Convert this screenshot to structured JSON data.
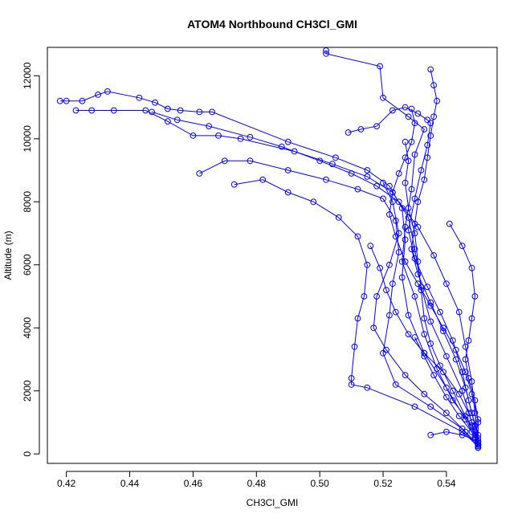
{
  "chart_data": {
    "type": "scatter",
    "title": "ATOM4 Northbound CH3Cl_GMI",
    "xlabel": "CH3Cl_GMI",
    "ylabel": "Altitude (m)",
    "xlim": [
      0.414,
      0.556
    ],
    "ylim": [
      -300,
      12900
    ],
    "x_ticks": [
      "0.42",
      "0.44",
      "0.46",
      "0.48",
      "0.50",
      "0.52",
      "0.54"
    ],
    "y_ticks": [
      "0",
      "2000",
      "4000",
      "6000",
      "8000",
      "10000",
      "12000"
    ],
    "series_color": "#0000ff",
    "marker": "open-circle",
    "connected": true,
    "series": [
      {
        "points": [
          [
            0.502,
            12800
          ],
          [
            0.502,
            12700
          ],
          [
            0.519,
            12300
          ],
          [
            0.52,
            11300
          ],
          [
            0.528,
            10700
          ],
          [
            0.533,
            10300
          ],
          [
            0.53,
            9500
          ],
          [
            0.529,
            8400
          ],
          [
            0.527,
            7200
          ],
          [
            0.526,
            6100
          ],
          [
            0.53,
            5000
          ],
          [
            0.533,
            3800
          ],
          [
            0.537,
            2700
          ],
          [
            0.542,
            1700
          ],
          [
            0.548,
            900
          ],
          [
            0.55,
            400
          ],
          [
            0.55,
            200
          ]
        ]
      },
      {
        "points": [
          [
            0.418,
            11200
          ],
          [
            0.42,
            11200
          ],
          [
            0.425,
            11200
          ],
          [
            0.43,
            11400
          ],
          [
            0.433,
            11500
          ],
          [
            0.443,
            11300
          ],
          [
            0.448,
            11150
          ],
          [
            0.452,
            10950
          ],
          [
            0.456,
            10900
          ],
          [
            0.462,
            10850
          ],
          [
            0.466,
            10850
          ],
          [
            0.49,
            9900
          ],
          [
            0.505,
            9400
          ],
          [
            0.515,
            9000
          ],
          [
            0.522,
            8500
          ],
          [
            0.526,
            7800
          ],
          [
            0.527,
            6800
          ],
          [
            0.526,
            5600
          ],
          [
            0.528,
            4400
          ],
          [
            0.533,
            3200
          ],
          [
            0.54,
            2100
          ],
          [
            0.546,
            1100
          ],
          [
            0.549,
            500
          ],
          [
            0.55,
            300
          ]
        ]
      },
      {
        "points": [
          [
            0.423,
            10900
          ],
          [
            0.428,
            10900
          ],
          [
            0.435,
            10900
          ],
          [
            0.445,
            10900
          ],
          [
            0.452,
            10550
          ],
          [
            0.46,
            10100
          ],
          [
            0.468,
            10100
          ],
          [
            0.475,
            10000
          ],
          [
            0.492,
            9600
          ],
          [
            0.504,
            9200
          ],
          [
            0.515,
            8800
          ],
          [
            0.523,
            8300
          ],
          [
            0.528,
            7500
          ],
          [
            0.53,
            6500
          ],
          [
            0.532,
            5300
          ],
          [
            0.535,
            4200
          ],
          [
            0.54,
            3100
          ],
          [
            0.545,
            2000
          ],
          [
            0.548,
            1000
          ],
          [
            0.55,
            300
          ]
        ]
      },
      {
        "points": [
          [
            0.462,
            8900
          ],
          [
            0.47,
            9300
          ],
          [
            0.478,
            9300
          ],
          [
            0.49,
            9000
          ],
          [
            0.502,
            8700
          ],
          [
            0.512,
            8400
          ],
          [
            0.52,
            8100
          ],
          [
            0.524,
            7400
          ],
          [
            0.525,
            6400
          ],
          [
            0.523,
            5400
          ],
          [
            0.522,
            4400
          ],
          [
            0.52,
            3200
          ],
          [
            0.524,
            2200
          ],
          [
            0.535,
            1500
          ],
          [
            0.545,
            800
          ],
          [
            0.55,
            200
          ]
        ]
      },
      {
        "points": [
          [
            0.473,
            8550
          ],
          [
            0.482,
            8700
          ],
          [
            0.49,
            8300
          ],
          [
            0.498,
            8000
          ],
          [
            0.506,
            7500
          ],
          [
            0.512,
            6900
          ],
          [
            0.515,
            6000
          ],
          [
            0.514,
            5000
          ],
          [
            0.512,
            4300
          ],
          [
            0.511,
            3400
          ],
          [
            0.51,
            2400
          ],
          [
            0.51,
            2200
          ],
          [
            0.515,
            2100
          ],
          [
            0.53,
            1500
          ],
          [
            0.545,
            700
          ],
          [
            0.55,
            250
          ]
        ]
      },
      {
        "points": [
          [
            0.509,
            10200
          ],
          [
            0.513,
            10300
          ],
          [
            0.518,
            10400
          ],
          [
            0.523,
            10900
          ],
          [
            0.527,
            11000
          ],
          [
            0.531,
            10800
          ],
          [
            0.534,
            10600
          ],
          [
            0.535,
            10500
          ],
          [
            0.534,
            9800
          ],
          [
            0.532,
            9000
          ],
          [
            0.53,
            8100
          ],
          [
            0.528,
            7100
          ],
          [
            0.53,
            6200
          ],
          [
            0.534,
            5300
          ],
          [
            0.538,
            4500
          ],
          [
            0.542,
            3600
          ],
          [
            0.545,
            2600
          ],
          [
            0.547,
            1700
          ],
          [
            0.549,
            900
          ],
          [
            0.55,
            350
          ]
        ]
      },
      {
        "points": [
          [
            0.535,
            12200
          ],
          [
            0.536,
            11700
          ],
          [
            0.537,
            11200
          ],
          [
            0.536,
            10700
          ],
          [
            0.535,
            10100
          ],
          [
            0.534,
            9400
          ],
          [
            0.533,
            8700
          ],
          [
            0.531,
            8000
          ],
          [
            0.53,
            7300
          ],
          [
            0.529,
            6500
          ],
          [
            0.531,
            5700
          ],
          [
            0.535,
            4800
          ],
          [
            0.539,
            3900
          ],
          [
            0.543,
            3000
          ],
          [
            0.546,
            2100
          ],
          [
            0.548,
            1300
          ],
          [
            0.55,
            600
          ],
          [
            0.55,
            200
          ]
        ]
      },
      {
        "points": [
          [
            0.447,
            10850
          ],
          [
            0.455,
            10600
          ],
          [
            0.465,
            10400
          ],
          [
            0.478,
            10050
          ],
          [
            0.488,
            9750
          ],
          [
            0.5,
            9300
          ],
          [
            0.51,
            8900
          ],
          [
            0.518,
            8500
          ],
          [
            0.525,
            8000
          ],
          [
            0.531,
            7200
          ],
          [
            0.536,
            6300
          ],
          [
            0.54,
            5400
          ],
          [
            0.544,
            4500
          ],
          [
            0.546,
            3400
          ],
          [
            0.548,
            2300
          ],
          [
            0.549,
            1300
          ],
          [
            0.55,
            400
          ]
        ]
      },
      {
        "points": [
          [
            0.52,
            8600
          ],
          [
            0.523,
            8000
          ],
          [
            0.525,
            7000
          ],
          [
            0.522,
            6000
          ],
          [
            0.518,
            5000
          ],
          [
            0.517,
            4000
          ],
          [
            0.521,
            3300
          ],
          [
            0.527,
            2500
          ],
          [
            0.533,
            1900
          ],
          [
            0.54,
            1300
          ],
          [
            0.546,
            700
          ],
          [
            0.55,
            300
          ]
        ]
      },
      {
        "points": [
          [
            0.527,
            9900
          ],
          [
            0.528,
            9300
          ],
          [
            0.527,
            8600
          ],
          [
            0.528,
            7800
          ],
          [
            0.53,
            7000
          ],
          [
            0.531,
            6100
          ],
          [
            0.532,
            5200
          ],
          [
            0.533,
            4300
          ],
          [
            0.535,
            3500
          ],
          [
            0.538,
            2800
          ],
          [
            0.542,
            2000
          ],
          [
            0.546,
            1200
          ],
          [
            0.549,
            600
          ],
          [
            0.55,
            250
          ]
        ]
      },
      {
        "points": [
          [
            0.541,
            7300
          ],
          [
            0.545,
            6600
          ],
          [
            0.548,
            5900
          ],
          [
            0.549,
            5000
          ],
          [
            0.548,
            4300
          ],
          [
            0.547,
            3600
          ],
          [
            0.546,
            3000
          ],
          [
            0.547,
            2400
          ],
          [
            0.549,
            1700
          ],
          [
            0.55,
            1000
          ],
          [
            0.55,
            400
          ]
        ]
      },
      {
        "points": [
          [
            0.53,
            3700
          ],
          [
            0.533,
            3100
          ],
          [
            0.536,
            2500
          ],
          [
            0.54,
            1800
          ],
          [
            0.544,
            1200
          ],
          [
            0.548,
            700
          ],
          [
            0.55,
            300
          ]
        ]
      },
      {
        "points": [
          [
            0.516,
            6600
          ],
          [
            0.519,
            5900
          ],
          [
            0.521,
            5200
          ],
          [
            0.524,
            4500
          ],
          [
            0.528,
            3800
          ],
          [
            0.533,
            3200
          ],
          [
            0.539,
            2600
          ],
          [
            0.544,
            1900
          ],
          [
            0.547,
            1300
          ],
          [
            0.549,
            700
          ],
          [
            0.55,
            300
          ]
        ]
      },
      {
        "points": [
          [
            0.529,
            10950
          ],
          [
            0.53,
            10500
          ],
          [
            0.529,
            9900
          ],
          [
            0.527,
            9400
          ],
          [
            0.525,
            8900
          ],
          [
            0.523,
            8300
          ],
          [
            0.522,
            7600
          ],
          [
            0.524,
            6900
          ],
          [
            0.527,
            6100
          ],
          [
            0.531,
            5400
          ],
          [
            0.535,
            4700
          ],
          [
            0.539,
            4000
          ],
          [
            0.543,
            3300
          ],
          [
            0.546,
            2600
          ],
          [
            0.548,
            1900
          ],
          [
            0.55,
            1100
          ],
          [
            0.55,
            500
          ]
        ]
      },
      {
        "points": [
          [
            0.535,
            600
          ],
          [
            0.54,
            700
          ],
          [
            0.545,
            600
          ],
          [
            0.549,
            450
          ],
          [
            0.55,
            300
          ]
        ]
      }
    ]
  }
}
